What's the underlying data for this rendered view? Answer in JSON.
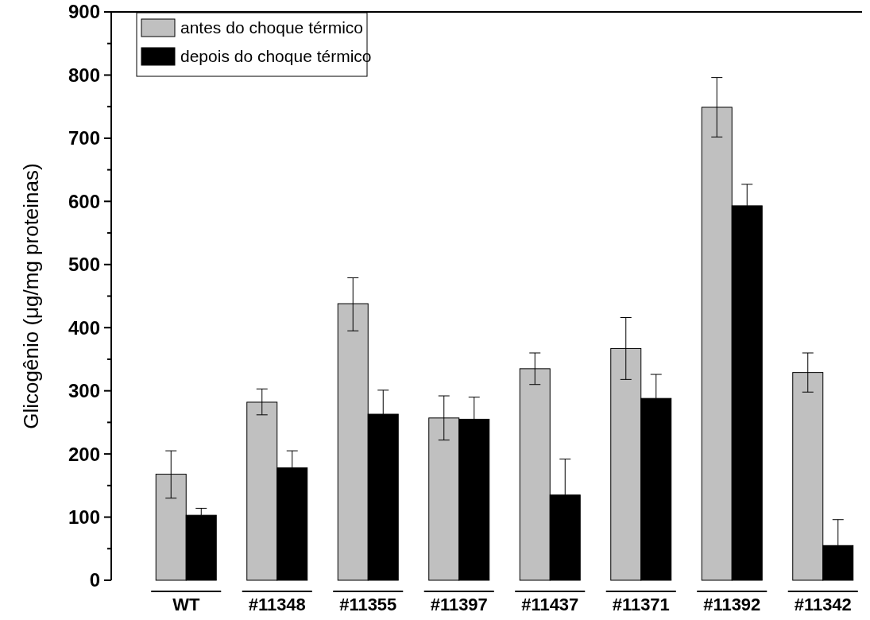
{
  "chart_data": {
    "type": "bar",
    "ylabel": "Glicogênio (μg/mg proteinas)",
    "categories": [
      "WT",
      "#11348",
      "#11355",
      "#11397",
      "#11437",
      "#11371",
      "#11392",
      "#11342"
    ],
    "series": [
      {
        "name": "antes do choque térmico",
        "color": "#c0c0c0",
        "values": [
          168,
          282,
          438,
          257,
          335,
          367,
          749,
          329
        ],
        "errors": [
          [
            130,
            205
          ],
          [
            262,
            303
          ],
          [
            395,
            479
          ],
          [
            222,
            292
          ],
          [
            310,
            360
          ],
          [
            318,
            416
          ],
          [
            702,
            796
          ],
          [
            298,
            360
          ]
        ]
      },
      {
        "name": "depois do choque térmico",
        "color": "#000000",
        "values": [
          103,
          178,
          263,
          255,
          135,
          288,
          593,
          55
        ],
        "errors": [
          [
            103,
            114
          ],
          [
            178,
            205
          ],
          [
            263,
            301
          ],
          [
            255,
            290
          ],
          [
            135,
            192
          ],
          [
            288,
            326
          ],
          [
            593,
            627
          ],
          [
            55,
            96
          ]
        ]
      }
    ],
    "ylim": [
      0,
      900
    ],
    "yticks": [
      0,
      100,
      200,
      300,
      400,
      500,
      600,
      700,
      800,
      900
    ],
    "grid": false,
    "legend": "top left"
  }
}
